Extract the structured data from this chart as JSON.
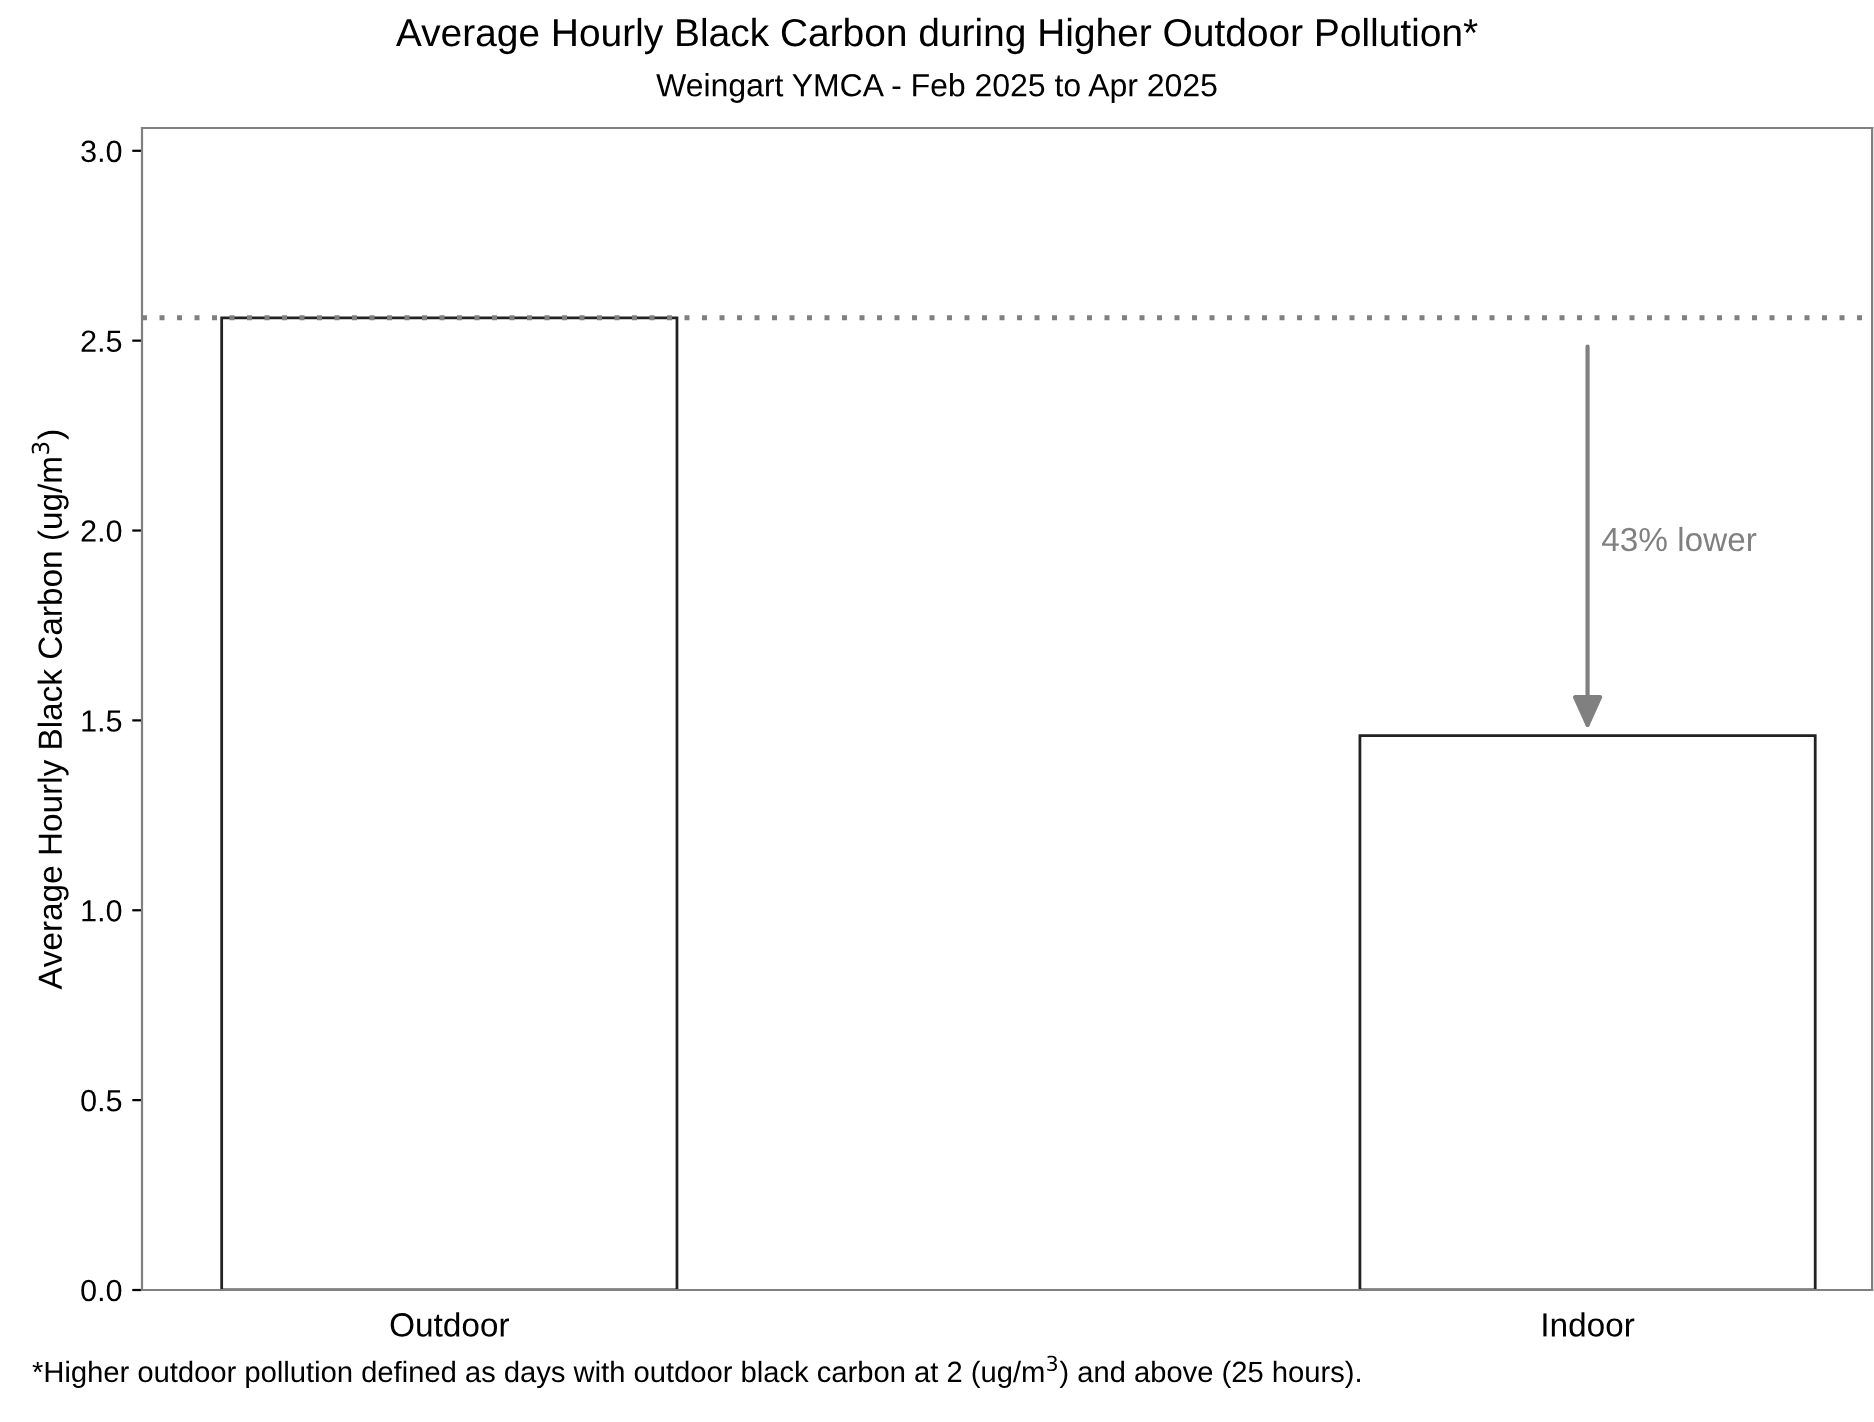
{
  "chart_data": {
    "type": "bar",
    "title": "Average Hourly Black Carbon during Higher Outdoor Pollution*",
    "subtitle": "Weingart YMCA - Feb 2025 to Apr 2025",
    "ylabel": "Average Hourly Black Carbon (ug/m$^{3}$)",
    "categories": [
      "Outdoor",
      "Indoor"
    ],
    "values": [
      2.56,
      1.46
    ],
    "color": "#ffffff",
    "ylim": [
      0,
      3.06
    ],
    "yticks": [
      {
        "value": 0,
        "label": "0.0"
      },
      0.5,
      {
        "value": 1,
        "label": "1.0"
      },
      1.5,
      {
        "value": 2,
        "label": "2.0"
      },
      2.5,
      {
        "value": 3,
        "label": "3.0"
      }
    ],
    "grid": false,
    "ref_lines": [
      {
        "axis": "y",
        "value": 2.56,
        "label": null,
        "color": "#808080",
        "line_style": "dotted"
      }
    ],
    "annotations": [
      "43% lower",
      "*Higher outdoor pollution defined as days with outdoor black carbon at 2 (ug/m$^{3}$) and above (25 hours)."
    ]
  }
}
